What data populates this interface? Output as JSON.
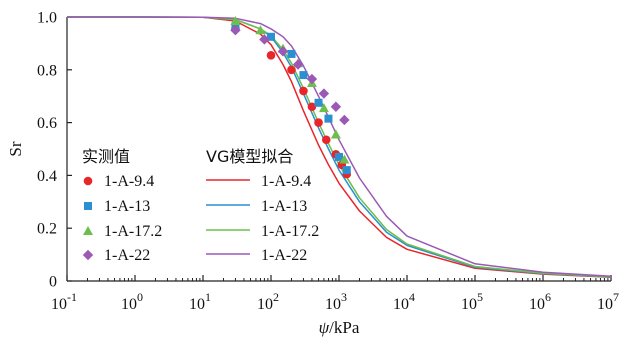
{
  "chart_data": {
    "type": "line",
    "title": "",
    "xlabel_psi": "ψ",
    "xlabel_unit": "/kPa",
    "ylabel": "Sr",
    "x_scale": "log",
    "xlim": [
      0.1,
      10000000
    ],
    "ylim": [
      0,
      1.0
    ],
    "yticks": [
      "0",
      "0.2",
      "0.4",
      "0.6",
      "0.8",
      "1.0"
    ],
    "ytick_values": [
      0,
      0.2,
      0.4,
      0.6,
      0.8,
      1.0
    ],
    "xticks": [
      {
        "base": "10",
        "exp": "-1",
        "value": 0.1
      },
      {
        "base": "10",
        "exp": "0",
        "value": 1
      },
      {
        "base": "10",
        "exp": "1",
        "value": 10
      },
      {
        "base": "10",
        "exp": "2",
        "value": 100
      },
      {
        "base": "10",
        "exp": "3",
        "value": 1000
      },
      {
        "base": "10",
        "exp": "4",
        "value": 10000
      },
      {
        "base": "10",
        "exp": "5",
        "value": 100000
      },
      {
        "base": "10",
        "exp": "6",
        "value": 1000000
      },
      {
        "base": "10",
        "exp": "7",
        "value": 10000000
      }
    ],
    "grid": false,
    "legend_placement": "bottom-left",
    "legend_heading_measured": "实测值",
    "legend_heading_fit": "VG模型拟合",
    "series": [
      {
        "name": "1-A-9.4",
        "marker": "circle",
        "color": "#e8262a",
        "points": [
          [
            30,
            0.955
          ],
          [
            100,
            0.855
          ],
          [
            200,
            0.8
          ],
          [
            300,
            0.72
          ],
          [
            400,
            0.66
          ],
          [
            500,
            0.6
          ],
          [
            650,
            0.535
          ],
          [
            900,
            0.48
          ],
          [
            1100,
            0.44
          ],
          [
            1300,
            0.405
          ]
        ],
        "fit_points": [
          [
            0.1,
            1.0
          ],
          [
            1,
            1.0
          ],
          [
            10,
            0.999
          ],
          [
            30,
            0.985
          ],
          [
            70,
            0.935
          ],
          [
            100,
            0.895
          ],
          [
            150,
            0.82
          ],
          [
            200,
            0.755
          ],
          [
            300,
            0.645
          ],
          [
            500,
            0.515
          ],
          [
            700,
            0.44
          ],
          [
            1000,
            0.37
          ],
          [
            2000,
            0.265
          ],
          [
            5000,
            0.165
          ],
          [
            10000,
            0.12
          ],
          [
            100000,
            0.048
          ],
          [
            1000000,
            0.026
          ],
          [
            10000000,
            0.014
          ]
        ]
      },
      {
        "name": "1-A-13",
        "marker": "square",
        "color": "#2b8fd0",
        "points": [
          [
            30,
            0.965
          ],
          [
            100,
            0.925
          ],
          [
            200,
            0.86
          ],
          [
            300,
            0.78
          ],
          [
            500,
            0.675
          ],
          [
            700,
            0.615
          ],
          [
            1000,
            0.47
          ],
          [
            1300,
            0.42
          ]
        ],
        "fit_points": [
          [
            0.1,
            1.0
          ],
          [
            1,
            1.0
          ],
          [
            10,
            0.999
          ],
          [
            30,
            0.99
          ],
          [
            70,
            0.955
          ],
          [
            100,
            0.925
          ],
          [
            150,
            0.865
          ],
          [
            200,
            0.81
          ],
          [
            300,
            0.71
          ],
          [
            500,
            0.58
          ],
          [
            700,
            0.5
          ],
          [
            1000,
            0.42
          ],
          [
            2000,
            0.3
          ],
          [
            5000,
            0.185
          ],
          [
            10000,
            0.135
          ],
          [
            100000,
            0.052
          ],
          [
            1000000,
            0.028
          ],
          [
            10000000,
            0.015
          ]
        ]
      },
      {
        "name": "1-A-17.2",
        "marker": "triangle",
        "color": "#6dbf4b",
        "points": [
          [
            30,
            0.985
          ],
          [
            70,
            0.95
          ],
          [
            150,
            0.88
          ],
          [
            250,
            0.825
          ],
          [
            400,
            0.75
          ],
          [
            600,
            0.655
          ],
          [
            900,
            0.555
          ],
          [
            1200,
            0.46
          ]
        ],
        "fit_points": [
          [
            0.1,
            1.0
          ],
          [
            1,
            1.0
          ],
          [
            10,
            0.999
          ],
          [
            30,
            0.99
          ],
          [
            70,
            0.955
          ],
          [
            100,
            0.93
          ],
          [
            150,
            0.875
          ],
          [
            200,
            0.825
          ],
          [
            300,
            0.73
          ],
          [
            500,
            0.6
          ],
          [
            700,
            0.52
          ],
          [
            1000,
            0.44
          ],
          [
            2000,
            0.315
          ],
          [
            5000,
            0.195
          ],
          [
            10000,
            0.14
          ],
          [
            100000,
            0.055
          ],
          [
            1000000,
            0.029
          ],
          [
            10000000,
            0.016
          ]
        ]
      },
      {
        "name": "1-A-22",
        "marker": "diamond",
        "color": "#9b59b6",
        "points": [
          [
            30,
            0.95
          ],
          [
            80,
            0.915
          ],
          [
            150,
            0.87
          ],
          [
            250,
            0.82
          ],
          [
            400,
            0.765
          ],
          [
            600,
            0.71
          ],
          [
            900,
            0.66
          ],
          [
            1200,
            0.61
          ]
        ],
        "fit_points": [
          [
            0.1,
            1.0
          ],
          [
            1,
            1.0
          ],
          [
            10,
            0.999
          ],
          [
            30,
            0.995
          ],
          [
            70,
            0.975
          ],
          [
            100,
            0.955
          ],
          [
            150,
            0.925
          ],
          [
            200,
            0.89
          ],
          [
            300,
            0.815
          ],
          [
            500,
            0.7
          ],
          [
            700,
            0.62
          ],
          [
            1000,
            0.535
          ],
          [
            2000,
            0.39
          ],
          [
            5000,
            0.245
          ],
          [
            10000,
            0.17
          ],
          [
            100000,
            0.065
          ],
          [
            1000000,
            0.033
          ],
          [
            10000000,
            0.018
          ]
        ]
      }
    ]
  }
}
